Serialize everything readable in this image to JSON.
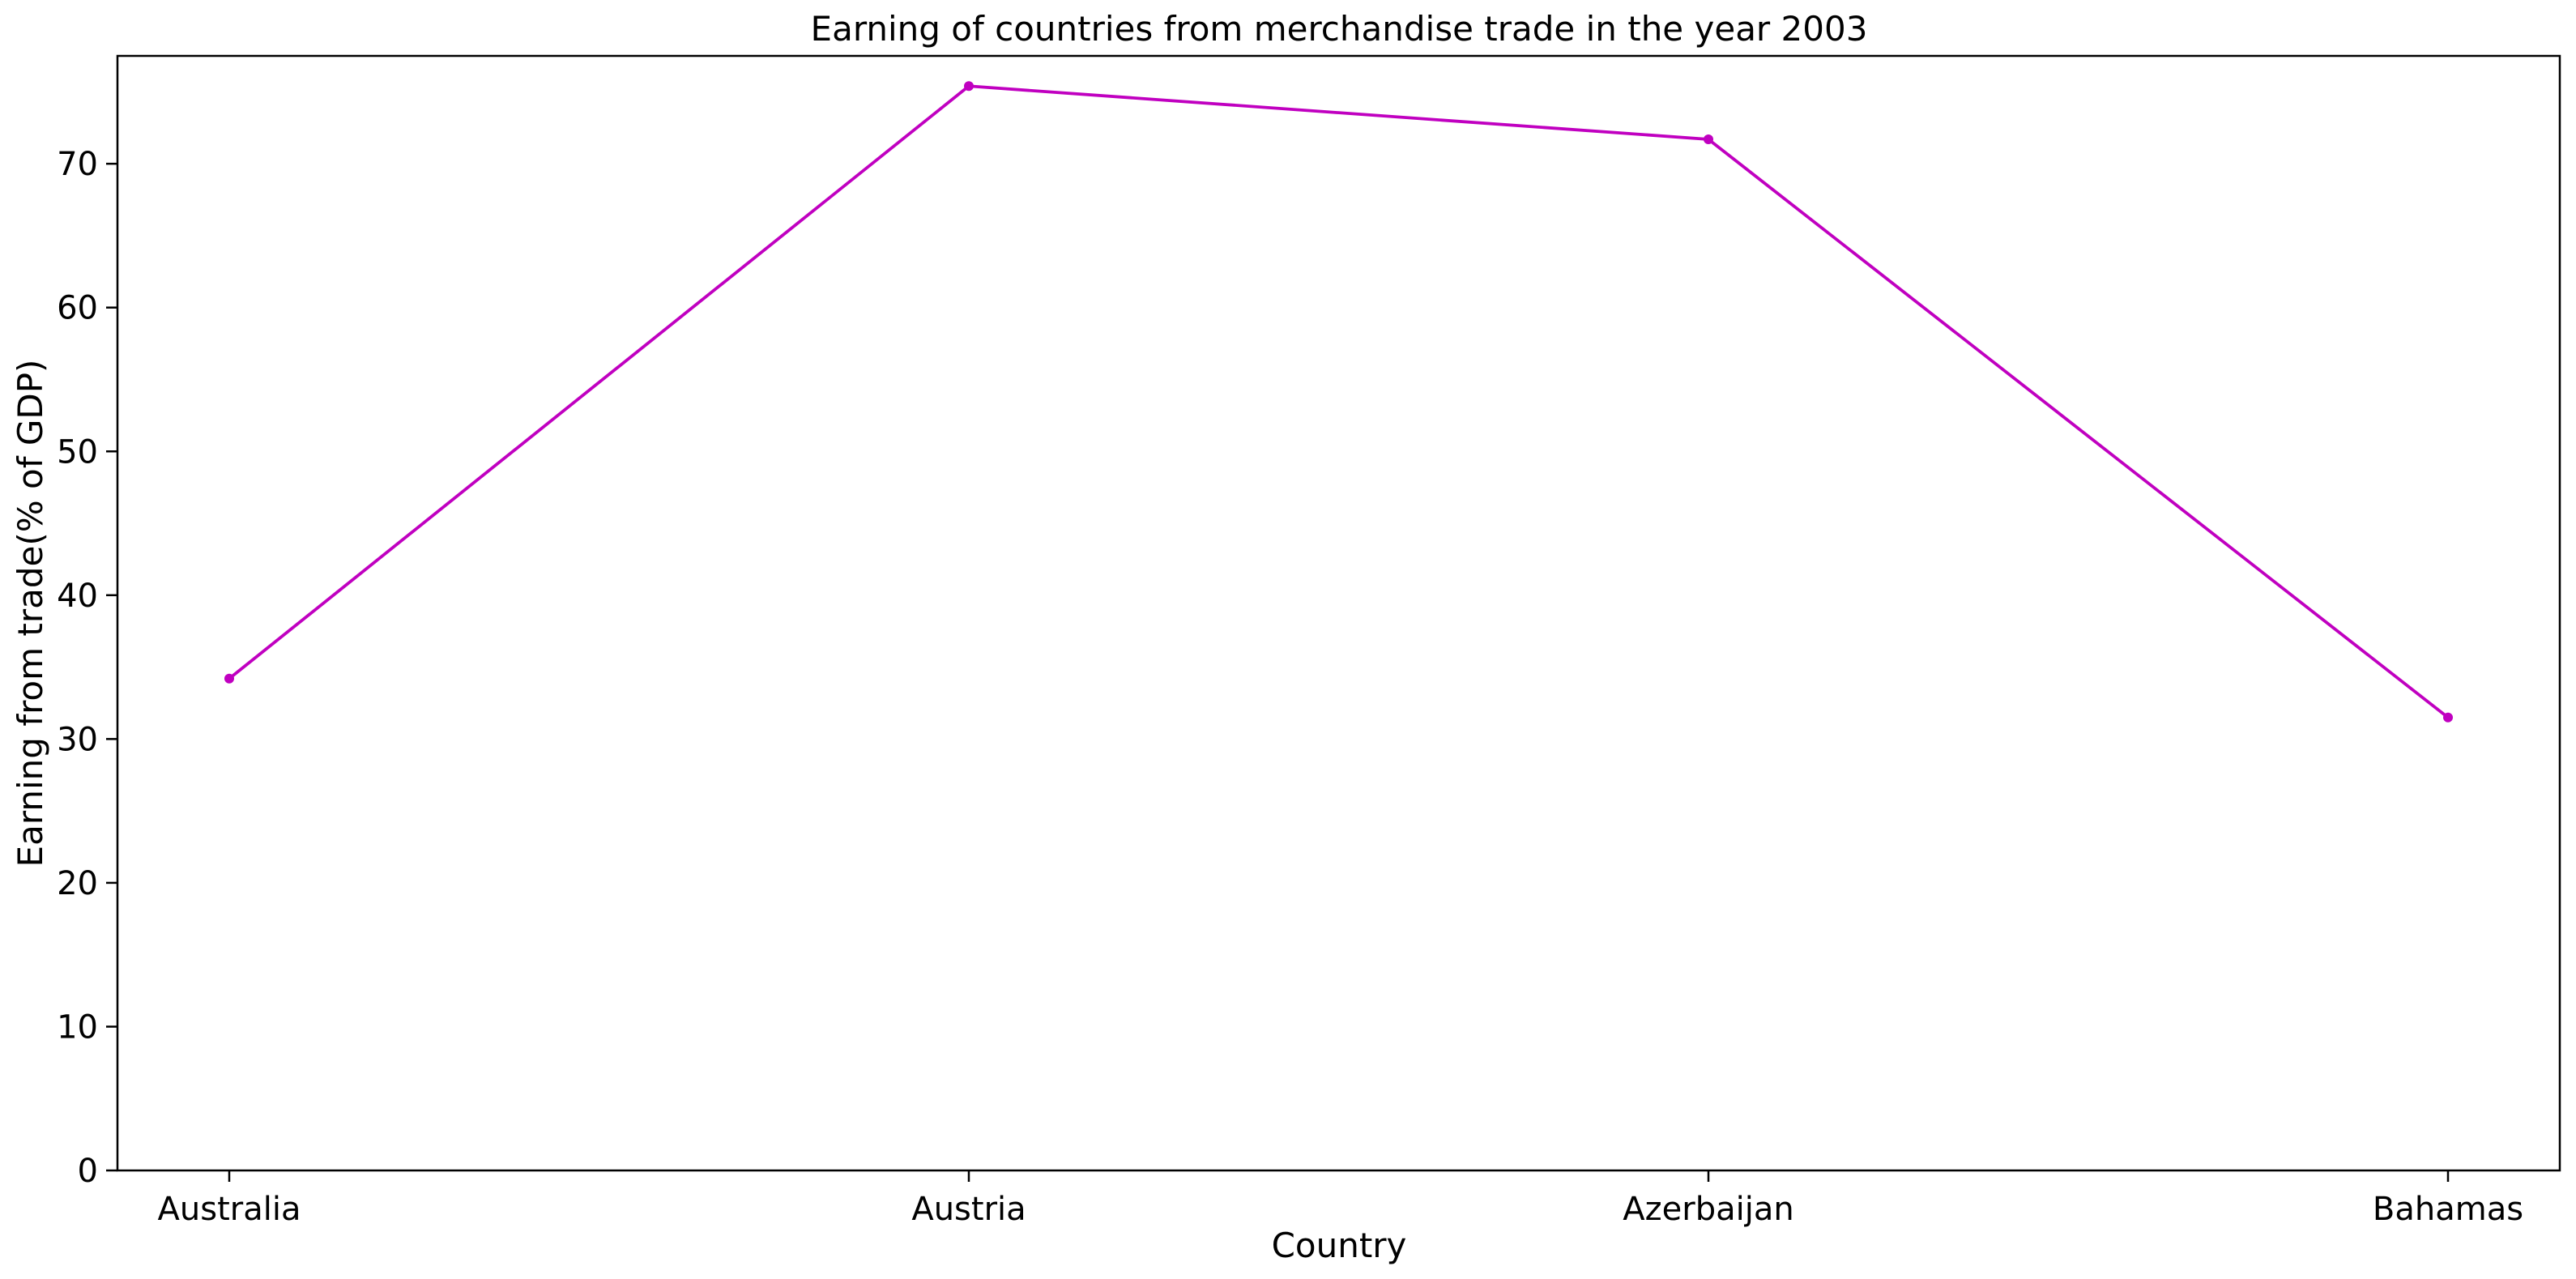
{
  "chart_data": {
    "type": "line",
    "title": "Earning of countries from merchandise trade in the year 2003",
    "xlabel": "Country",
    "ylabel": "Earning from trade(% of GDP)",
    "categories": [
      "Australia",
      "Austria",
      "Azerbaijan",
      "Bahamas"
    ],
    "series": [
      {
        "values": [
          34.2,
          75.4,
          71.7,
          31.5
        ],
        "color": "#c000c0"
      }
    ],
    "ylim": [
      0,
      77.5
    ],
    "yticks": [
      0,
      10,
      20,
      30,
      40,
      50,
      60,
      70
    ],
    "grid": false,
    "legend": "none"
  }
}
